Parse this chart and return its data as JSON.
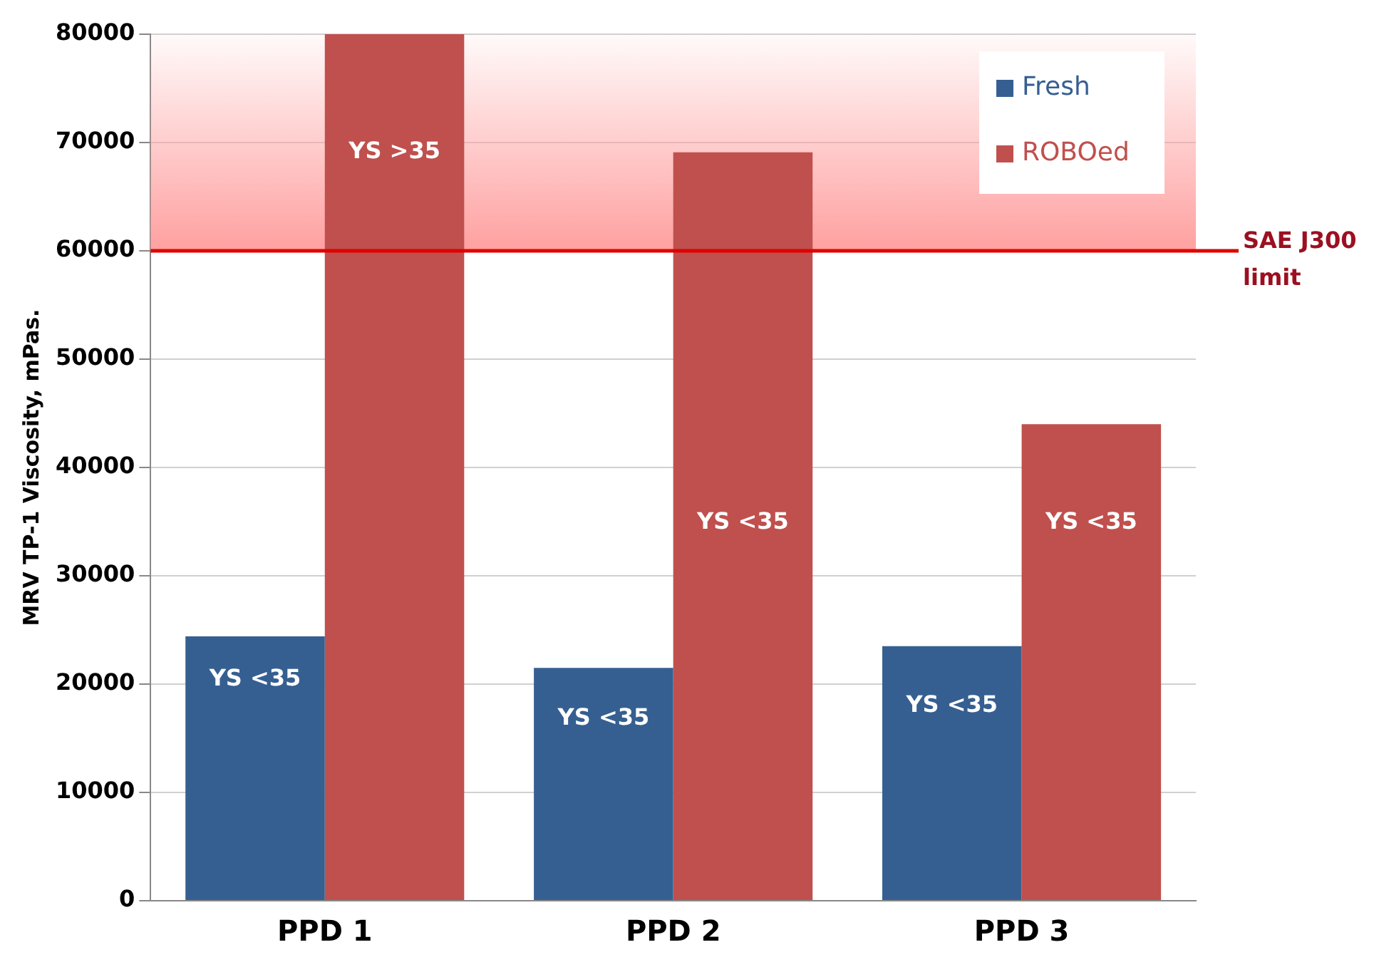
{
  "chart_data": {
    "type": "bar",
    "ylabel": "MRV TP-1 Viscosity, mPas.",
    "categories": [
      "PPD 1",
      "PPD 2",
      "PPD 3"
    ],
    "series": [
      {
        "name": "Fresh",
        "color": "#365f91",
        "values": [
          24400,
          21500,
          23500
        ]
      },
      {
        "name": "ROBOed",
        "color": "#c0504d",
        "values": [
          80000,
          69100,
          44000
        ]
      }
    ],
    "ylim": [
      0,
      80000
    ],
    "yticks": [
      0,
      10000,
      20000,
      30000,
      40000,
      50000,
      60000,
      70000,
      80000
    ],
    "grid": "y",
    "legend": "top right",
    "ref_lines": [
      {
        "axis": "y",
        "value": 60000,
        "label": "SAE J300 limit",
        "color": "#e00000"
      }
    ],
    "bands": [
      {
        "axis": "y",
        "from": 60000,
        "to": 80000,
        "color": "#ffa0a0"
      }
    ],
    "annotations": [
      {
        "text": "YS <35",
        "x": "PPD 1",
        "y": 20400
      },
      {
        "text": "YS >35",
        "x": "PPD 1",
        "y": 69100
      },
      {
        "text": "YS <35",
        "x": "PPD 2",
        "y": 16800
      },
      {
        "text": "YS <35",
        "x": "PPD 2",
        "y": 34900
      },
      {
        "text": "YS <35",
        "x": "PPD 3",
        "y": 18000
      },
      {
        "text": "YS <35",
        "x": "PPD 3",
        "y": 34900
      }
    ]
  }
}
